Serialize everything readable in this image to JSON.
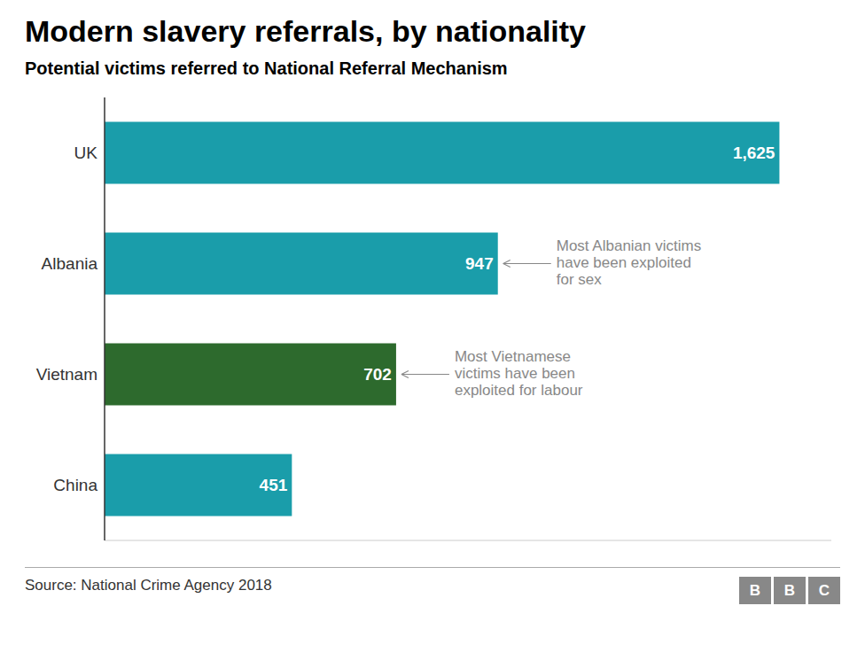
{
  "chart_data": {
    "type": "bar",
    "orientation": "horizontal",
    "title": "Modern slavery referrals, by nationality",
    "subtitle": "Potential victims referred to National Referral Mechanism",
    "categories": [
      "China",
      "Vietnam",
      "Albania",
      "UK"
    ],
    "values": [
      451,
      702,
      947,
      1625
    ],
    "value_labels": [
      "451",
      "702",
      "947",
      "1,625"
    ],
    "colors": [
      "#1a9daa",
      "#2d6a2d",
      "#1a9daa",
      "#1a9daa"
    ],
    "data_labels": true,
    "xlim": [
      0,
      1750
    ],
    "tick_labels": "y",
    "grid": false,
    "annotations": [
      {
        "text": "Most Albanian victims\nhave been exploited\nfor sex",
        "category": "Albania",
        "color": "#888888"
      },
      {
        "text": "Most Vietnamese\nvictims have been\nexploited for labour",
        "category": "Vietnam",
        "color": "#888888"
      }
    ],
    "source": "Source: National Crime Agency 2018",
    "logo": "BBC"
  }
}
